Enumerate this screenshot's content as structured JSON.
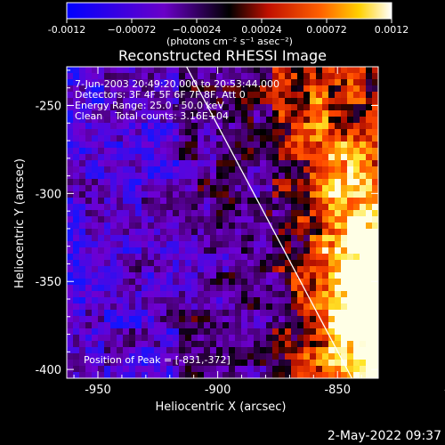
{
  "chart_data": {
    "type": "heatmap",
    "title": "Reconstructed RHESSI Image",
    "xlabel": "Heliocentric X (arcsec)",
    "ylabel": "Heliocentric Y (arcsec)",
    "xlim": [
      -963,
      -833
    ],
    "ylim": [
      -405,
      -228
    ],
    "xticks": [
      -950,
      -900,
      -850,
      -800
    ],
    "yticks": [
      -250,
      -300,
      -350,
      -400
    ],
    "colorbar": {
      "range": [
        -0.0012,
        0.0012
      ],
      "ticks": [
        -0.0012,
        -0.00072,
        -0.00024,
        0.00024,
        0.00072,
        0.0012
      ],
      "tick_labels": [
        "-0.0012",
        "−0.00072",
        "−0.00024",
        "0.00024",
        "0.00072",
        "0.0012"
      ],
      "unit_label": "(photons cm⁻² s⁻¹ asec⁻²)"
    },
    "info_lines": [
      "7-Jun-2003 20:49:20.000 to 20:53:44.000",
      "Detectors: 3F 4F 5F 6F 7F 8F, Att 0",
      "Energy Range: 25.0 - 50.0 keV",
      "Clean    Total counts: 3.16E+04"
    ],
    "peak_label": "Position of Peak = [-831,-372]",
    "peak": {
      "x": -831,
      "y": -372
    },
    "limb_line": {
      "x": [
        -913,
        -844
      ],
      "y": [
        -228,
        -405
      ]
    },
    "colors": {
      "cold": "#0000ff",
      "mid": "#000000",
      "hot": "#ffffff"
    }
  },
  "footer": {
    "timestamp": "2-May-2022 09:37"
  }
}
